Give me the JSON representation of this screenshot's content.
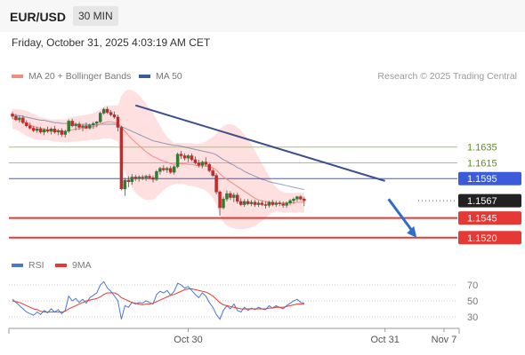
{
  "header": {
    "symbol": "EUR/USD",
    "timeframe": "30 MIN"
  },
  "timestamp": "Friday, October 31, 2025 4:03:19 AM CET",
  "legend": {
    "ma_label": "MA 20 + Bollinger Bands",
    "ma50_label": "MA 50",
    "rsi_label": "RSI",
    "rsi_ma_label": "9MA"
  },
  "research": "Research © 2025 Trading Central",
  "colors": {
    "ma20": "#f28b82",
    "ma50": "#3d5a99",
    "bollinger": "#fde0df",
    "support": "#e53935",
    "resistance_green": "#9ccc65",
    "pivot_blue": "#3b5bdb",
    "current": "#222222",
    "candle_up": "#2e7d32",
    "candle_down": "#c62828",
    "trend": "#3d4f8c",
    "rsi": "#4a77d4",
    "rsi_ma": "#e53935"
  },
  "chart_data": {
    "type": "candlestick",
    "levels": [
      {
        "value": "1.1635",
        "style": "green"
      },
      {
        "value": "1.1615",
        "style": "green"
      },
      {
        "value": "1.1595",
        "style": "blue"
      },
      {
        "value": "1.1567",
        "style": "current"
      },
      {
        "value": "1.1545",
        "style": "red"
      },
      {
        "value": "1.1520",
        "style": "red"
      }
    ],
    "ylim": [
      1.1495,
      1.17
    ],
    "rsi_ticks": [
      "70",
      "50",
      "30"
    ],
    "rsi_ylim": [
      20,
      80
    ],
    "x_ticks": [
      "Oct 30",
      "Oct 31",
      "Nov 7"
    ],
    "candles": [
      [
        1.1677,
        1.168,
        1.1671,
        1.1674
      ],
      [
        1.1674,
        1.1677,
        1.1668,
        1.167
      ],
      [
        1.167,
        1.1675,
        1.1666,
        1.1672
      ],
      [
        1.1672,
        1.1675,
        1.1664,
        1.1666
      ],
      [
        1.1666,
        1.1669,
        1.166,
        1.1662
      ],
      [
        1.1662,
        1.1666,
        1.1657,
        1.1659
      ],
      [
        1.1659,
        1.1662,
        1.1654,
        1.1656
      ],
      [
        1.1656,
        1.1661,
        1.1653,
        1.1658
      ],
      [
        1.1658,
        1.1661,
        1.1652,
        1.1654
      ],
      [
        1.1654,
        1.1659,
        1.165,
        1.1657
      ],
      [
        1.1657,
        1.1661,
        1.1653,
        1.1655
      ],
      [
        1.1655,
        1.166,
        1.1651,
        1.1658
      ],
      [
        1.1658,
        1.1662,
        1.1652,
        1.1654
      ],
      [
        1.1654,
        1.1658,
        1.165,
        1.1656
      ],
      [
        1.1656,
        1.1659,
        1.1648,
        1.1651
      ],
      [
        1.1651,
        1.1657,
        1.1647,
        1.1655
      ],
      [
        1.1655,
        1.167,
        1.1653,
        1.1668
      ],
      [
        1.1668,
        1.1671,
        1.166,
        1.1662
      ],
      [
        1.1662,
        1.1666,
        1.1656,
        1.1664
      ],
      [
        1.1664,
        1.1667,
        1.1657,
        1.166
      ],
      [
        1.166,
        1.1664,
        1.1655,
        1.1662
      ],
      [
        1.1662,
        1.1666,
        1.1658,
        1.1659
      ],
      [
        1.1659,
        1.1665,
        1.1657,
        1.1663
      ],
      [
        1.1663,
        1.1667,
        1.1658,
        1.1665
      ],
      [
        1.1665,
        1.1668,
        1.166,
        1.1667
      ],
      [
        1.1667,
        1.168,
        1.1665,
        1.1678
      ],
      [
        1.1678,
        1.1685,
        1.1676,
        1.1683
      ],
      [
        1.1683,
        1.1686,
        1.1677,
        1.1679
      ],
      [
        1.1679,
        1.1682,
        1.1674,
        1.1676
      ],
      [
        1.1676,
        1.168,
        1.1671,
        1.1673
      ],
      [
        1.1673,
        1.1676,
        1.1655,
        1.166
      ],
      [
        1.166,
        1.1662,
        1.158,
        1.1582
      ],
      [
        1.1582,
        1.1596,
        1.1573,
        1.1593
      ],
      [
        1.1593,
        1.1598,
        1.1584,
        1.1591
      ],
      [
        1.1591,
        1.1601,
        1.1587,
        1.1597
      ],
      [
        1.1597,
        1.16,
        1.1592,
        1.1595
      ],
      [
        1.1595,
        1.1599,
        1.1591,
        1.1597
      ],
      [
        1.1597,
        1.16,
        1.1593,
        1.1596
      ],
      [
        1.1596,
        1.16,
        1.1592,
        1.1598
      ],
      [
        1.1598,
        1.1601,
        1.1594,
        1.1596
      ],
      [
        1.1596,
        1.1599,
        1.159,
        1.1594
      ],
      [
        1.1594,
        1.1606,
        1.1592,
        1.1604
      ],
      [
        1.1604,
        1.161,
        1.16,
        1.1608
      ],
      [
        1.1608,
        1.1612,
        1.1604,
        1.1606
      ],
      [
        1.1606,
        1.161,
        1.1602,
        1.1608
      ],
      [
        1.1608,
        1.1611,
        1.1601,
        1.1603
      ],
      [
        1.1603,
        1.1612,
        1.16,
        1.161
      ],
      [
        1.161,
        1.1628,
        1.1608,
        1.1626
      ],
      [
        1.1626,
        1.163,
        1.162,
        1.1624
      ],
      [
        1.1624,
        1.1627,
        1.1618,
        1.1621
      ],
      [
        1.1621,
        1.1626,
        1.1616,
        1.1624
      ],
      [
        1.1624,
        1.1627,
        1.1617,
        1.1619
      ],
      [
        1.1619,
        1.1623,
        1.1613,
        1.1615
      ],
      [
        1.1615,
        1.1619,
        1.1609,
        1.1612
      ],
      [
        1.1612,
        1.1618,
        1.1608,
        1.1616
      ],
      [
        1.1616,
        1.1622,
        1.161,
        1.1613
      ],
      [
        1.1613,
        1.1615,
        1.1603,
        1.1605
      ],
      [
        1.1605,
        1.1608,
        1.1597,
        1.1599
      ],
      [
        1.1599,
        1.1602,
        1.1575,
        1.1578
      ],
      [
        1.1578,
        1.158,
        1.1548,
        1.1558
      ],
      [
        1.1558,
        1.1572,
        1.1556,
        1.1569
      ],
      [
        1.1569,
        1.158,
        1.1566,
        1.1576
      ],
      [
        1.1576,
        1.1579,
        1.1568,
        1.1571
      ],
      [
        1.1571,
        1.1577,
        1.1565,
        1.1574
      ],
      [
        1.1574,
        1.1577,
        1.1563,
        1.1566
      ],
      [
        1.1566,
        1.157,
        1.156,
        1.1562
      ],
      [
        1.1562,
        1.1569,
        1.1559,
        1.1566
      ],
      [
        1.1566,
        1.1569,
        1.1561,
        1.1563
      ],
      [
        1.1563,
        1.1568,
        1.156,
        1.1565
      ],
      [
        1.1565,
        1.1568,
        1.1559,
        1.1562
      ],
      [
        1.1562,
        1.1567,
        1.1559,
        1.1564
      ],
      [
        1.1564,
        1.1567,
        1.156,
        1.1562
      ],
      [
        1.1562,
        1.1566,
        1.1557,
        1.1561
      ],
      [
        1.1561,
        1.1567,
        1.1558,
        1.1565
      ],
      [
        1.1565,
        1.1568,
        1.156,
        1.1562
      ],
      [
        1.1562,
        1.1567,
        1.1559,
        1.1564
      ],
      [
        1.1564,
        1.1567,
        1.156,
        1.1563
      ],
      [
        1.1563,
        1.1566,
        1.1558,
        1.1561
      ],
      [
        1.1561,
        1.1566,
        1.1558,
        1.1564
      ],
      [
        1.1564,
        1.1569,
        1.1561,
        1.1567
      ],
      [
        1.1567,
        1.1571,
        1.1563,
        1.1569
      ],
      [
        1.1569,
        1.1573,
        1.1566,
        1.1572
      ],
      [
        1.1572,
        1.1574,
        1.1567,
        1.1569
      ],
      [
        1.1569,
        1.1572,
        1.156,
        1.1567
      ]
    ],
    "ma20": [
      1.1671,
      1.167,
      1.1669,
      1.1667,
      1.1665,
      1.1663,
      1.1661,
      1.166,
      1.1659,
      1.1658,
      1.1657,
      1.1657,
      1.1656,
      1.1656,
      1.1655,
      1.1655,
      1.1656,
      1.1657,
      1.1658,
      1.1658,
      1.1659,
      1.1659,
      1.166,
      1.1661,
      1.1662,
      1.1664,
      1.1666,
      1.1667,
      1.1667,
      1.1666,
      1.1665,
      1.166,
      1.1655,
      1.165,
      1.1645,
      1.1641,
      1.1637,
      1.1633,
      1.1629,
      1.1626,
      1.1623,
      1.1621,
      1.1619,
      1.1617,
      1.1616,
      1.1614,
      1.1613,
      1.1614,
      1.1614,
      1.1614,
      1.1613,
      1.1613,
      1.1612,
      1.1611,
      1.1611,
      1.1611,
      1.161,
      1.1609,
      1.1606,
      1.1601,
      1.1597,
      1.1594,
      1.1591,
      1.1588,
      1.1585,
      1.1582,
      1.1579,
      1.1576,
      1.1573,
      1.157,
      1.1568,
      1.1567,
      1.1566,
      1.1565,
      1.1564,
      1.1564,
      1.1564,
      1.1564,
      1.1564,
      1.1564,
      1.1564,
      1.1565,
      1.1565,
      1.1565
    ],
    "ma50": [
      1.1676,
      1.1675,
      1.1675,
      1.1674,
      1.1673,
      1.1672,
      1.1671,
      1.167,
      1.1669,
      1.1669,
      1.1668,
      1.1667,
      1.1666,
      1.1666,
      1.1665,
      1.1665,
      1.1665,
      1.1665,
      1.1664,
      1.1664,
      1.1664,
      1.1664,
      1.1663,
      1.1663,
      1.1663,
      1.1664,
      1.1664,
      1.1664,
      1.1664,
      1.1664,
      1.1663,
      1.1661,
      1.1659,
      1.1657,
      1.1655,
      1.1653,
      1.1651,
      1.1649,
      1.1647,
      1.1645,
      1.1643,
      1.1642,
      1.1641,
      1.164,
      1.1639,
      1.1638,
      1.1637,
      1.1637,
      1.1636,
      1.1635,
      1.1634,
      1.1633,
      1.1632,
      1.1631,
      1.163,
      1.1629,
      1.1628,
      1.1627,
      1.1625,
      1.1622,
      1.1619,
      1.1617,
      1.1614,
      1.1612,
      1.1609,
      1.1607,
      1.1604,
      1.1602,
      1.16,
      1.1598,
      1.1596,
      1.1594,
      1.1593,
      1.1591,
      1.159,
      1.1589,
      1.1588,
      1.1587,
      1.1586,
      1.1585,
      1.1584,
      1.1583,
      1.1582,
      1.1581
    ],
    "bb_upper": [
      1.1684,
      1.1683,
      1.1683,
      1.1682,
      1.1681,
      1.1679,
      1.1677,
      1.1675,
      1.1673,
      1.1672,
      1.1671,
      1.167,
      1.167,
      1.167,
      1.167,
      1.167,
      1.1672,
      1.1673,
      1.1674,
      1.1675,
      1.1675,
      1.1676,
      1.1677,
      1.1678,
      1.168,
      1.1683,
      1.1686,
      1.1688,
      1.1688,
      1.1688,
      1.1688,
      1.17,
      1.1706,
      1.1708,
      1.1707,
      1.1705,
      1.1701,
      1.1696,
      1.169,
      1.1684,
      1.1678,
      1.167,
      1.1662,
      1.1654,
      1.1648,
      1.1644,
      1.164,
      1.164,
      1.164,
      1.164,
      1.164,
      1.164,
      1.1639,
      1.1639,
      1.164,
      1.1642,
      1.1645,
      1.1648,
      1.1652,
      1.1658,
      1.1662,
      1.1664,
      1.1664,
      1.1663,
      1.166,
      1.1656,
      1.1651,
      1.1645,
      1.1638,
      1.163,
      1.1622,
      1.1614,
      1.1606,
      1.1598,
      1.159,
      1.1584,
      1.158,
      1.1578,
      1.1577,
      1.1577,
      1.1577,
      1.1577,
      1.1577,
      1.1577
    ],
    "bb_lower": [
      1.1658,
      1.1657,
      1.1655,
      1.1652,
      1.1649,
      1.1647,
      1.1645,
      1.1644,
      1.1644,
      1.1644,
      1.1644,
      1.1643,
      1.1642,
      1.1642,
      1.1641,
      1.1641,
      1.1641,
      1.1642,
      1.1642,
      1.1642,
      1.1643,
      1.1643,
      1.1644,
      1.1644,
      1.1644,
      1.1645,
      1.1646,
      1.1646,
      1.1646,
      1.1644,
      1.1642,
      1.162,
      1.1604,
      1.1592,
      1.1583,
      1.1577,
      1.1573,
      1.157,
      1.1568,
      1.1568,
      1.1568,
      1.1572,
      1.1576,
      1.158,
      1.1584,
      1.1586,
      1.1588,
      1.1588,
      1.1588,
      1.1588,
      1.1586,
      1.1586,
      1.1585,
      1.1583,
      1.1582,
      1.158,
      1.1576,
      1.157,
      1.1562,
      1.1548,
      1.154,
      1.1535,
      1.1533,
      1.1532,
      1.1531,
      1.1531,
      1.1531,
      1.1532,
      1.1533,
      1.1535,
      1.1538,
      1.1541,
      1.1545,
      1.1549,
      1.1552,
      1.1553,
      1.1553,
      1.1552,
      1.1552,
      1.1552,
      1.1552,
      1.1552,
      1.1552,
      1.1552
    ],
    "trend_line": {
      "start": [
        35,
        1.1688
      ],
      "end": [
        106,
        1.1592
      ]
    },
    "forecast_arrow": {
      "start": [
        107,
        1.1569
      ],
      "end": [
        115,
        1.152
      ]
    },
    "rsi": [
      52,
      48,
      44,
      40,
      36,
      34,
      32,
      36,
      33,
      38,
      35,
      40,
      36,
      39,
      34,
      38,
      56,
      50,
      53,
      48,
      52,
      47,
      54,
      57,
      60,
      70,
      74,
      66,
      62,
      56,
      50,
      27,
      44,
      42,
      48,
      46,
      48,
      47,
      50,
      48,
      46,
      58,
      62,
      60,
      63,
      57,
      62,
      72,
      70,
      66,
      68,
      63,
      58,
      54,
      60,
      56,
      48,
      42,
      33,
      27,
      38,
      44,
      40,
      46,
      38,
      36,
      42,
      38,
      41,
      39,
      42,
      40,
      39,
      44,
      41,
      44,
      42,
      40,
      44,
      47,
      50,
      52,
      48,
      47
    ],
    "rsi_ma": [
      50,
      49,
      48,
      46,
      44,
      42,
      40,
      39,
      37,
      36,
      36,
      36,
      36,
      36,
      36,
      37,
      40,
      42,
      44,
      46,
      48,
      50,
      51,
      52,
      53,
      55,
      58,
      60,
      60,
      60,
      58,
      54,
      52,
      50,
      48,
      47,
      46,
      45,
      46,
      46,
      47,
      49,
      51,
      53,
      55,
      57,
      58,
      60,
      62,
      64,
      65,
      65,
      64,
      63,
      62,
      61,
      59,
      56,
      52,
      48,
      45,
      44,
      43,
      42,
      41,
      40,
      40,
      40,
      40,
      40,
      40,
      40,
      40,
      41,
      41,
      42,
      42,
      42,
      43,
      44,
      45,
      46,
      46,
      46
    ]
  }
}
